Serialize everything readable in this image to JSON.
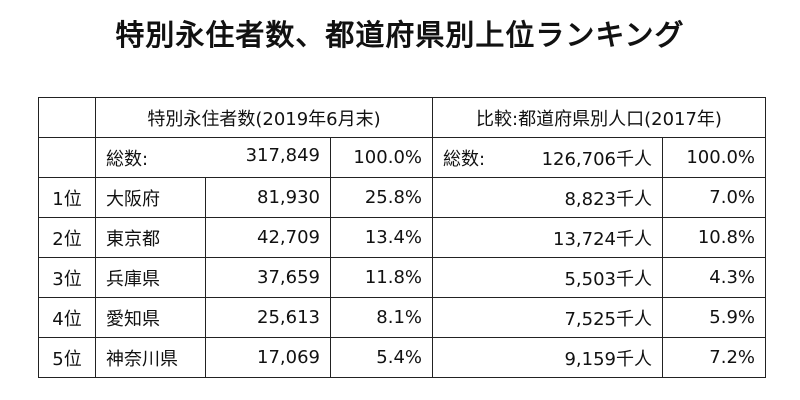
{
  "title": "特別永住者数、都道府県別上位ランキング",
  "table": {
    "header": [
      "特別永住者数(2019年6月末)",
      "比較:都道府県別人口(2017年)"
    ],
    "total": {
      "label": "総数:",
      "count": "317,849",
      "pct": "100.0%",
      "label2": "総数:",
      "population": "126,706千人",
      "pct2": "100.0%"
    },
    "rows": [
      [
        "1位",
        "大阪府",
        "81,930",
        "25.8%",
        "8,823千人",
        "7.0%"
      ],
      [
        "2位",
        "東京都",
        "42,709",
        "13.4%",
        "13,724千人",
        "10.8%"
      ],
      [
        "3位",
        "兵庫県",
        "37,659",
        "11.8%",
        "5,503千人",
        "4.3%"
      ],
      [
        "4位",
        "愛知県",
        "25,613",
        "8.1%",
        "7,525千人",
        "5.9%"
      ],
      [
        "5位",
        "神奈川県",
        "17,069",
        "5.4%",
        "9,159千人",
        "7.2%"
      ]
    ]
  }
}
